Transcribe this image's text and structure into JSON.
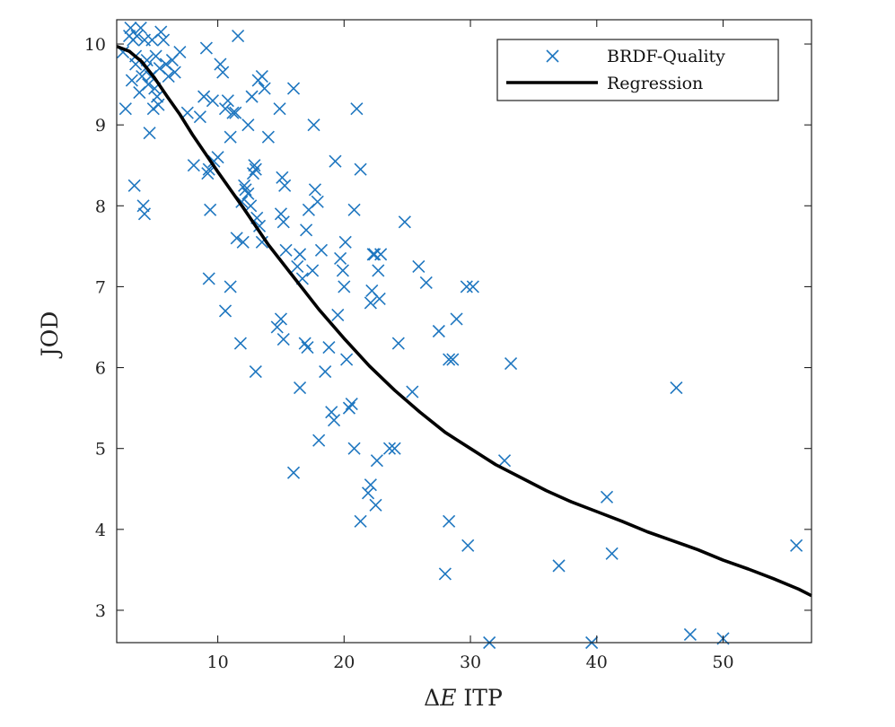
{
  "chart_data": {
    "type": "scatter",
    "title": "",
    "xlabel": "ΔE ITP",
    "xlabel_parts": {
      "delta": "Δ",
      "var": "E",
      "suffix": " ITP"
    },
    "ylabel": "JOD",
    "xlim": [
      2,
      57
    ],
    "ylim": [
      2.6,
      10.3
    ],
    "x_ticks": [
      10,
      20,
      30,
      40,
      50
    ],
    "y_ticks": [
      3,
      4,
      5,
      6,
      7,
      8,
      9,
      10
    ],
    "grid": false,
    "box": true,
    "legend_position": "top-right",
    "legend": [
      {
        "label": "BRDF-Quality",
        "marker": "x",
        "color": "#1f77c0"
      },
      {
        "label": "Regression",
        "marker": "line",
        "color": "#000000"
      }
    ],
    "series": [
      {
        "name": "BRDF-Quality",
        "kind": "scatter",
        "marker": "x",
        "color": "#1f77c0",
        "points": [
          [
            2.5,
            9.9
          ],
          [
            2.7,
            9.2
          ],
          [
            3.0,
            10.1
          ],
          [
            3.1,
            10.2
          ],
          [
            3.3,
            10.05
          ],
          [
            3.5,
            9.85
          ],
          [
            3.6,
            10.1
          ],
          [
            3.9,
            10.2
          ],
          [
            4.2,
            10.05
          ],
          [
            4.4,
            9.8
          ],
          [
            3.2,
            9.55
          ],
          [
            3.5,
            9.75
          ],
          [
            3.8,
            9.4
          ],
          [
            4.0,
            9.6
          ],
          [
            4.3,
            9.7
          ],
          [
            4.5,
            9.5
          ],
          [
            4.7,
            9.6
          ],
          [
            4.9,
            9.2
          ],
          [
            5.0,
            9.45
          ],
          [
            5.2,
            9.35
          ],
          [
            5.4,
            9.7
          ],
          [
            5.5,
            10.15
          ],
          [
            5.7,
            10.05
          ],
          [
            5.9,
            9.75
          ],
          [
            6.1,
            9.6
          ],
          [
            6.4,
            9.8
          ],
          [
            6.6,
            9.65
          ],
          [
            7.0,
            9.9
          ],
          [
            4.8,
            10.05
          ],
          [
            5.1,
            9.85
          ],
          [
            4.6,
            8.9
          ],
          [
            5.3,
            9.25
          ],
          [
            3.4,
            8.25
          ],
          [
            4.1,
            8.0
          ],
          [
            4.2,
            7.9
          ],
          [
            7.6,
            9.15
          ],
          [
            8.1,
            8.5
          ],
          [
            8.6,
            9.1
          ],
          [
            8.9,
            9.35
          ],
          [
            9.1,
            9.95
          ],
          [
            9.2,
            8.4
          ],
          [
            9.3,
            8.45
          ],
          [
            9.4,
            7.95
          ],
          [
            9.6,
            9.3
          ],
          [
            9.7,
            8.55
          ],
          [
            10.0,
            8.6
          ],
          [
            10.2,
            9.75
          ],
          [
            10.4,
            9.65
          ],
          [
            10.6,
            9.2
          ],
          [
            10.8,
            9.3
          ],
          [
            11.0,
            8.85
          ],
          [
            11.2,
            9.15
          ],
          [
            11.4,
            9.15
          ],
          [
            11.6,
            10.1
          ],
          [
            9.3,
            7.1
          ],
          [
            10.6,
            6.7
          ],
          [
            11.0,
            7.0
          ],
          [
            11.5,
            7.6
          ],
          [
            11.8,
            6.3
          ],
          [
            12.0,
            7.55
          ],
          [
            11.9,
            8.05
          ],
          [
            12.1,
            8.25
          ],
          [
            12.2,
            8.2
          ],
          [
            12.4,
            8.15
          ],
          [
            12.6,
            8.0
          ],
          [
            12.8,
            8.4
          ],
          [
            12.9,
            8.5
          ],
          [
            13.0,
            8.45
          ],
          [
            13.1,
            7.85
          ],
          [
            13.3,
            7.75
          ],
          [
            13.5,
            7.55
          ],
          [
            12.4,
            9.0
          ],
          [
            12.7,
            9.35
          ],
          [
            13.2,
            9.55
          ],
          [
            13.5,
            9.6
          ],
          [
            13.7,
            9.45
          ],
          [
            14.0,
            8.85
          ],
          [
            13.0,
            5.95
          ],
          [
            14.9,
            9.2
          ],
          [
            15.1,
            8.35
          ],
          [
            15.3,
            8.25
          ],
          [
            15.0,
            7.9
          ],
          [
            15.2,
            7.8
          ],
          [
            15.4,
            7.45
          ],
          [
            14.7,
            6.5
          ],
          [
            15.0,
            6.6
          ],
          [
            15.2,
            6.35
          ],
          [
            16.0,
            9.45
          ],
          [
            16.3,
            7.25
          ],
          [
            16.5,
            7.4
          ],
          [
            16.7,
            7.1
          ],
          [
            16.9,
            6.3
          ],
          [
            17.1,
            6.25
          ],
          [
            16.5,
            5.75
          ],
          [
            17.0,
            7.7
          ],
          [
            17.2,
            7.95
          ],
          [
            17.5,
            7.2
          ],
          [
            17.7,
            8.2
          ],
          [
            17.9,
            8.05
          ],
          [
            18.2,
            7.45
          ],
          [
            17.6,
            9.0
          ],
          [
            16.0,
            4.7
          ],
          [
            18.0,
            5.1
          ],
          [
            18.5,
            5.95
          ],
          [
            18.8,
            6.25
          ],
          [
            19.0,
            5.45
          ],
          [
            19.2,
            5.35
          ],
          [
            19.3,
            8.55
          ],
          [
            19.5,
            6.65
          ],
          [
            19.7,
            7.35
          ],
          [
            19.9,
            7.2
          ],
          [
            20.0,
            7.0
          ],
          [
            20.1,
            7.55
          ],
          [
            20.2,
            6.1
          ],
          [
            20.4,
            5.5
          ],
          [
            20.6,
            5.55
          ],
          [
            20.8,
            7.95
          ],
          [
            21.0,
            9.2
          ],
          [
            21.3,
            8.45
          ],
          [
            20.8,
            5.0
          ],
          [
            21.3,
            4.1
          ],
          [
            21.9,
            4.45
          ],
          [
            22.1,
            4.55
          ],
          [
            22.1,
            6.8
          ],
          [
            22.2,
            6.95
          ],
          [
            22.3,
            7.4
          ],
          [
            22.4,
            7.4
          ],
          [
            22.5,
            4.3
          ],
          [
            22.6,
            4.85
          ],
          [
            22.7,
            7.2
          ],
          [
            22.8,
            6.85
          ],
          [
            22.9,
            7.4
          ],
          [
            23.6,
            5.0
          ],
          [
            24.0,
            5.0
          ],
          [
            24.3,
            6.3
          ],
          [
            24.8,
            7.8
          ],
          [
            25.4,
            5.7
          ],
          [
            25.9,
            7.25
          ],
          [
            26.5,
            7.05
          ],
          [
            27.5,
            6.45
          ],
          [
            28.0,
            3.45
          ],
          [
            28.3,
            6.1
          ],
          [
            28.6,
            6.1
          ],
          [
            28.9,
            6.6
          ],
          [
            28.3,
            4.1
          ],
          [
            29.8,
            3.8
          ],
          [
            29.7,
            7.0
          ],
          [
            30.2,
            7.0
          ],
          [
            31.5,
            2.6
          ],
          [
            32.7,
            4.85
          ],
          [
            33.2,
            6.05
          ],
          [
            37.0,
            3.55
          ],
          [
            39.6,
            2.6
          ],
          [
            40.8,
            4.4
          ],
          [
            41.2,
            3.7
          ],
          [
            46.3,
            5.75
          ],
          [
            47.4,
            2.7
          ],
          [
            50.0,
            2.65
          ],
          [
            55.8,
            3.8
          ]
        ]
      },
      {
        "name": "Regression",
        "kind": "line",
        "color": "#000000",
        "points": [
          [
            2.0,
            9.97
          ],
          [
            3.0,
            9.91
          ],
          [
            4.0,
            9.78
          ],
          [
            5.0,
            9.58
          ],
          [
            6.0,
            9.35
          ],
          [
            7.0,
            9.13
          ],
          [
            8.0,
            8.88
          ],
          [
            10.0,
            8.42
          ],
          [
            12.0,
            7.98
          ],
          [
            14.0,
            7.52
          ],
          [
            16.0,
            7.12
          ],
          [
            18.0,
            6.72
          ],
          [
            20.0,
            6.36
          ],
          [
            22.0,
            6.02
          ],
          [
            24.0,
            5.72
          ],
          [
            26.0,
            5.45
          ],
          [
            28.0,
            5.2
          ],
          [
            30.0,
            5.0
          ],
          [
            32.0,
            4.8
          ],
          [
            34.0,
            4.64
          ],
          [
            36.0,
            4.48
          ],
          [
            38.0,
            4.34
          ],
          [
            40.0,
            4.22
          ],
          [
            42.0,
            4.1
          ],
          [
            44.0,
            3.97
          ],
          [
            46.0,
            3.86
          ],
          [
            48.0,
            3.75
          ],
          [
            50.0,
            3.62
          ],
          [
            52.0,
            3.51
          ],
          [
            54.0,
            3.39
          ],
          [
            56.0,
            3.26
          ],
          [
            57.0,
            3.18
          ]
        ]
      }
    ]
  }
}
